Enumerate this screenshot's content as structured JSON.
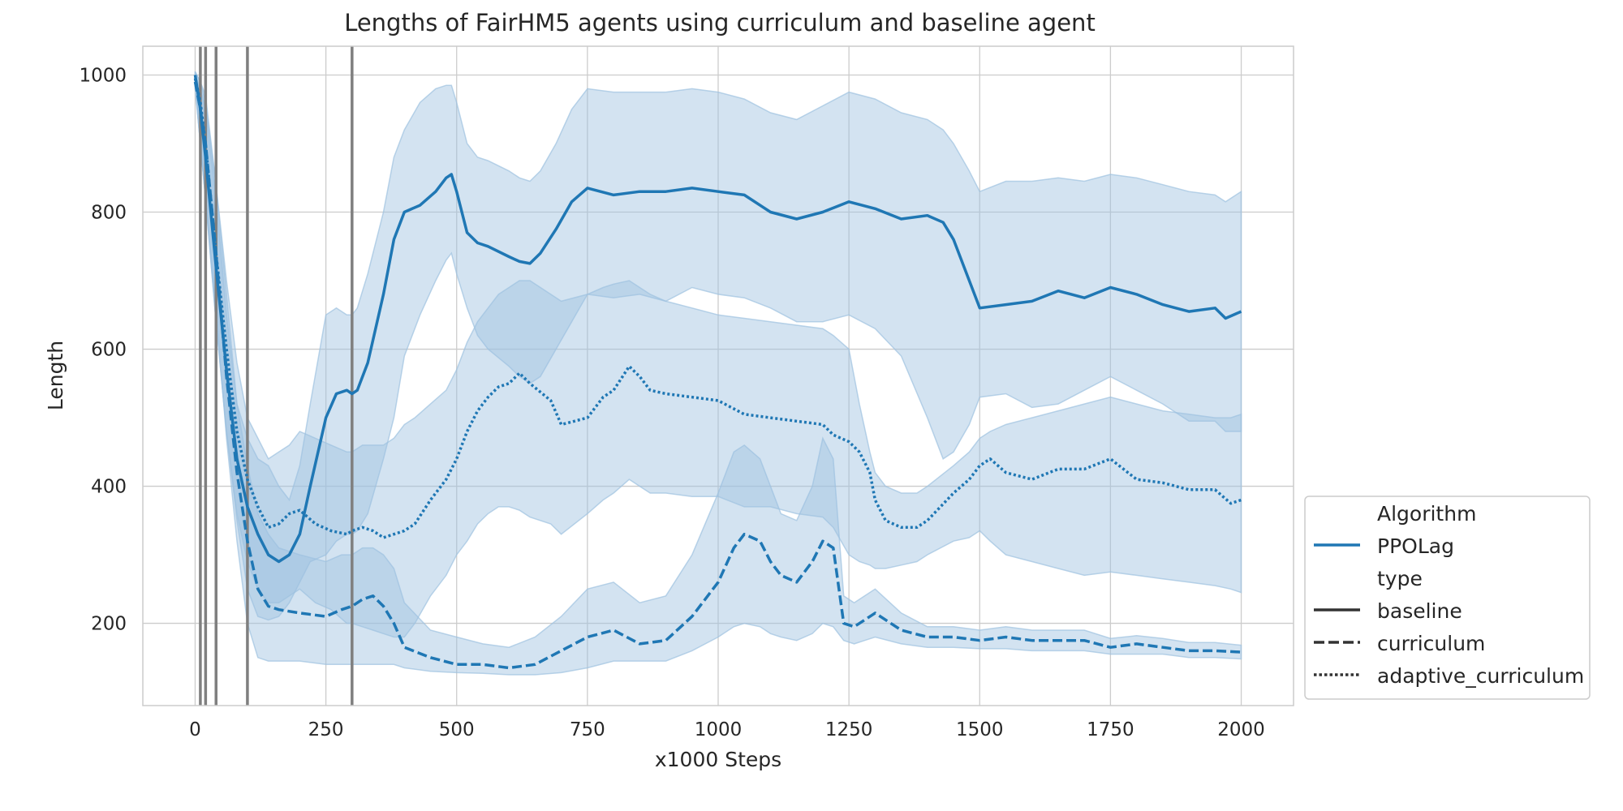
{
  "chart_data": {
    "type": "line",
    "title": "Lengths of FairHM5 agents using curriculum and baseline agent",
    "xlabel": "x1000 Steps",
    "ylabel": "Length",
    "xlim": [
      -100,
      2100
    ],
    "ylim": [
      80,
      1042
    ],
    "xticks": [
      0,
      250,
      500,
      750,
      1000,
      1250,
      1500,
      1750,
      2000
    ],
    "yticks": [
      200,
      400,
      600,
      800,
      1000
    ],
    "grid": true,
    "color": "#1f77b4",
    "band_color": "#9ec2e0",
    "vline_color": "#7f7f7f",
    "vlines": [
      10,
      20,
      40,
      100,
      300
    ],
    "legend": {
      "placement": "outside-right-bottom",
      "algorithm_title": "Algorithm",
      "algorithm_entries": [
        "PPOLag"
      ],
      "type_title": "type",
      "type_entries": [
        "baseline",
        "curriculum",
        "adaptive_curriculum"
      ]
    },
    "series": [
      {
        "name": "baseline",
        "style": "solid",
        "x": [
          0,
          10,
          20,
          40,
          60,
          80,
          100,
          120,
          140,
          160,
          180,
          200,
          220,
          250,
          270,
          290,
          300,
          310,
          330,
          360,
          380,
          400,
          430,
          460,
          480,
          490,
          500,
          520,
          540,
          560,
          600,
          620,
          640,
          660,
          690,
          720,
          750,
          800,
          850,
          900,
          950,
          1000,
          1050,
          1100,
          1150,
          1200,
          1250,
          1300,
          1350,
          1400,
          1430,
          1450,
          1480,
          1500,
          1550,
          1600,
          1650,
          1700,
          1750,
          1800,
          1850,
          1900,
          1950,
          1970,
          2000
        ],
        "y": [
          1000,
          950,
          880,
          720,
          570,
          440,
          370,
          330,
          300,
          290,
          300,
          330,
          400,
          500,
          535,
          540,
          535,
          540,
          580,
          680,
          760,
          800,
          810,
          830,
          850,
          855,
          830,
          770,
          755,
          750,
          735,
          728,
          725,
          740,
          775,
          815,
          835,
          825,
          830,
          830,
          835,
          830,
          825,
          800,
          790,
          800,
          815,
          805,
          790,
          795,
          785,
          760,
          700,
          660,
          665,
          670,
          685,
          675,
          690,
          680,
          665,
          655,
          660,
          645,
          655
        ],
        "band_low": [
          985,
          900,
          820,
          640,
          480,
          350,
          250,
          210,
          205,
          210,
          230,
          260,
          290,
          300,
          320,
          330,
          330,
          335,
          360,
          440,
          500,
          590,
          650,
          700,
          730,
          740,
          710,
          660,
          620,
          600,
          575,
          560,
          550,
          560,
          600,
          640,
          680,
          675,
          680,
          670,
          690,
          680,
          675,
          660,
          640,
          640,
          650,
          630,
          590,
          500,
          440,
          450,
          490,
          530,
          535,
          515,
          520,
          540,
          560,
          540,
          520,
          495,
          495,
          480,
          480
        ],
        "band_high": [
          1005,
          990,
          960,
          840,
          680,
          520,
          470,
          440,
          430,
          400,
          380,
          430,
          520,
          650,
          660,
          650,
          650,
          660,
          710,
          800,
          880,
          920,
          960,
          980,
          985,
          985,
          960,
          900,
          880,
          875,
          860,
          850,
          845,
          860,
          900,
          950,
          980,
          975,
          975,
          975,
          980,
          975,
          965,
          945,
          935,
          955,
          975,
          965,
          945,
          935,
          920,
          900,
          860,
          830,
          845,
          845,
          850,
          845,
          855,
          850,
          840,
          830,
          825,
          815,
          830
        ]
      },
      {
        "name": "curriculum",
        "style": "dashed",
        "x": [
          0,
          10,
          20,
          40,
          60,
          80,
          100,
          120,
          140,
          160,
          200,
          250,
          280,
          300,
          320,
          340,
          360,
          380,
          400,
          450,
          500,
          550,
          600,
          650,
          700,
          750,
          800,
          850,
          900,
          950,
          1000,
          1030,
          1050,
          1080,
          1100,
          1120,
          1150,
          1180,
          1200,
          1220,
          1240,
          1260,
          1280,
          1300,
          1350,
          1400,
          1450,
          1500,
          1550,
          1600,
          1650,
          1700,
          1750,
          1800,
          1850,
          1900,
          1950,
          2000
        ],
        "y": [
          990,
          950,
          900,
          740,
          560,
          420,
          320,
          250,
          225,
          220,
          215,
          210,
          220,
          225,
          235,
          240,
          225,
          200,
          165,
          150,
          140,
          140,
          135,
          140,
          160,
          180,
          190,
          170,
          175,
          210,
          260,
          310,
          330,
          320,
          290,
          270,
          260,
          290,
          320,
          310,
          200,
          195,
          205,
          215,
          190,
          180,
          180,
          175,
          180,
          175,
          175,
          175,
          165,
          170,
          165,
          160,
          160,
          158
        ],
        "band_low": [
          980,
          900,
          820,
          660,
          470,
          320,
          200,
          150,
          145,
          145,
          145,
          140,
          140,
          140,
          140,
          140,
          140,
          140,
          135,
          130,
          128,
          127,
          125,
          125,
          128,
          135,
          145,
          145,
          145,
          160,
          180,
          195,
          200,
          195,
          185,
          180,
          175,
          185,
          200,
          195,
          175,
          170,
          175,
          180,
          170,
          165,
          165,
          163,
          163,
          160,
          160,
          160,
          155,
          155,
          155,
          150,
          150,
          148
        ],
        "band_high": [
          1000,
          980,
          950,
          820,
          650,
          520,
          430,
          360,
          330,
          310,
          300,
          290,
          300,
          300,
          310,
          310,
          300,
          280,
          230,
          190,
          180,
          170,
          165,
          180,
          210,
          250,
          260,
          230,
          240,
          300,
          390,
          450,
          460,
          440,
          400,
          360,
          350,
          400,
          470,
          440,
          240,
          230,
          240,
          250,
          215,
          195,
          195,
          190,
          195,
          190,
          190,
          190,
          178,
          182,
          178,
          172,
          172,
          168
        ]
      },
      {
        "name": "adaptive_curriculum",
        "style": "dotted",
        "x": [
          0,
          10,
          20,
          40,
          60,
          80,
          100,
          120,
          140,
          160,
          180,
          200,
          230,
          260,
          290,
          300,
          320,
          340,
          360,
          380,
          400,
          420,
          450,
          480,
          500,
          520,
          540,
          560,
          580,
          600,
          620,
          640,
          680,
          700,
          750,
          780,
          800,
          830,
          850,
          870,
          900,
          950,
          1000,
          1050,
          1100,
          1150,
          1200,
          1220,
          1250,
          1270,
          1290,
          1300,
          1320,
          1350,
          1380,
          1400,
          1450,
          1480,
          1500,
          1520,
          1550,
          1600,
          1650,
          1700,
          1750,
          1800,
          1850,
          1900,
          1950,
          1980,
          2000
        ],
        "y": [
          995,
          960,
          900,
          740,
          600,
          480,
          410,
          370,
          340,
          345,
          360,
          365,
          345,
          335,
          330,
          335,
          340,
          335,
          325,
          330,
          335,
          345,
          380,
          410,
          440,
          480,
          510,
          530,
          545,
          550,
          565,
          550,
          525,
          490,
          500,
          530,
          540,
          575,
          560,
          540,
          535,
          530,
          525,
          505,
          500,
          495,
          490,
          475,
          465,
          450,
          420,
          380,
          350,
          340,
          340,
          350,
          390,
          410,
          430,
          440,
          420,
          410,
          425,
          425,
          440,
          410,
          405,
          395,
          395,
          375,
          380
        ],
        "band_low": [
          985,
          900,
          820,
          640,
          480,
          360,
          290,
          250,
          230,
          230,
          240,
          250,
          230,
          220,
          200,
          200,
          195,
          190,
          185,
          180,
          180,
          200,
          240,
          270,
          300,
          320,
          345,
          360,
          370,
          370,
          365,
          355,
          345,
          330,
          360,
          380,
          390,
          410,
          400,
          390,
          390,
          385,
          385,
          370,
          370,
          360,
          355,
          340,
          300,
          290,
          285,
          280,
          280,
          285,
          290,
          300,
          320,
          325,
          335,
          320,
          300,
          290,
          280,
          270,
          275,
          270,
          265,
          260,
          255,
          250,
          245
        ],
        "band_high": [
          1005,
          990,
          970,
          840,
          700,
          580,
          500,
          470,
          440,
          450,
          460,
          480,
          470,
          460,
          450,
          450,
          460,
          460,
          460,
          470,
          490,
          500,
          520,
          540,
          570,
          610,
          640,
          660,
          680,
          690,
          700,
          700,
          680,
          670,
          680,
          690,
          695,
          700,
          690,
          680,
          670,
          660,
          650,
          645,
          640,
          635,
          630,
          620,
          600,
          520,
          450,
          420,
          400,
          390,
          390,
          400,
          430,
          450,
          470,
          480,
          490,
          500,
          510,
          520,
          530,
          520,
          510,
          505,
          500,
          500,
          505
        ]
      }
    ]
  }
}
